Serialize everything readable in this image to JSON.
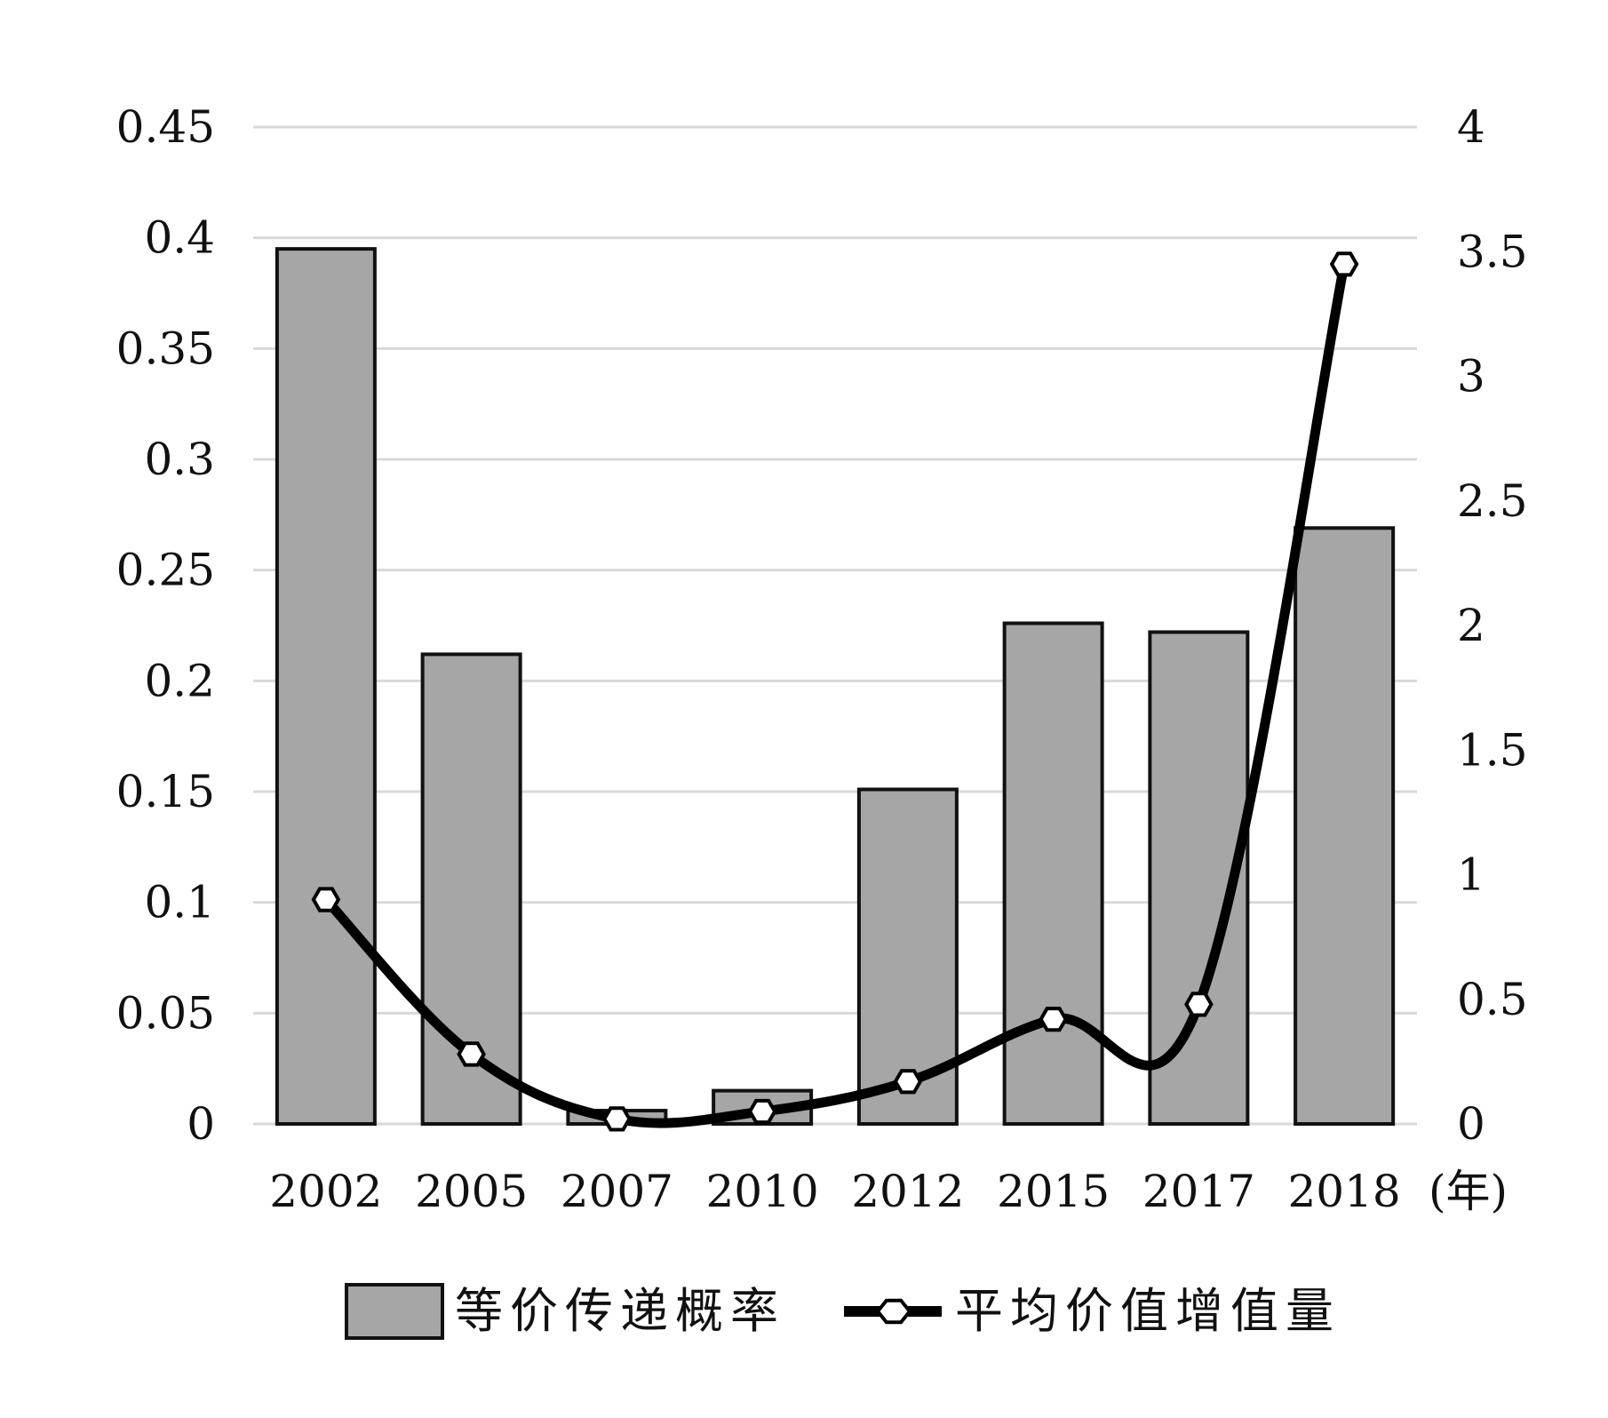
{
  "chart_data": {
    "type": "bar+line",
    "categories": [
      "2002",
      "2005",
      "2007",
      "2010",
      "2012",
      "2015",
      "2017",
      "2018"
    ],
    "x_unit_label": "(年)",
    "series": [
      {
        "name": "等价传递概率",
        "type": "bar",
        "axis": "left",
        "values": [
          0.395,
          0.212,
          0.006,
          0.015,
          0.151,
          0.226,
          0.222,
          0.269
        ]
      },
      {
        "name": "平均价值增值量",
        "type": "line",
        "axis": "right",
        "values": [
          0.9,
          0.28,
          0.02,
          0.05,
          0.17,
          0.42,
          0.48,
          3.45
        ]
      }
    ],
    "left_axis": {
      "ylim": [
        0,
        0.45
      ],
      "ticks": [
        "0",
        "0.05",
        "0.1",
        "0.15",
        "0.2",
        "0.25",
        "0.3",
        "0.35",
        "0.4",
        "0.45"
      ]
    },
    "right_axis": {
      "ylim": [
        0,
        4
      ],
      "ticks": [
        "0",
        "0.5",
        "1",
        "1.5",
        "2",
        "2.5",
        "3",
        "3.5",
        "4"
      ]
    },
    "grid": true,
    "legend_position": "bottom",
    "colors": {
      "bar_fill": "#a6a6a6",
      "bar_stroke": "#111111",
      "line": "#000000",
      "marker_fill": "#ffffff",
      "grid": "#d9d9d9"
    }
  }
}
